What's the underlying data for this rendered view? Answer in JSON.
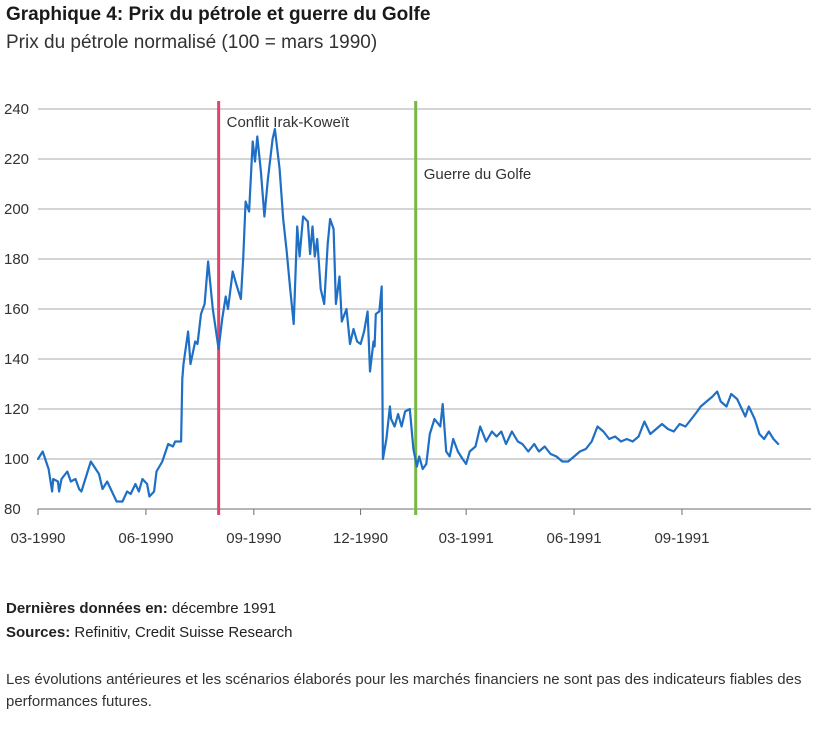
{
  "header": {
    "title": "Graphique 4: Prix du pétrole et guerre du Golfe",
    "subtitle": "Prix du pétrole normalisé (100 = mars 1990)"
  },
  "footer": {
    "last_data_label": "Dernières données en:",
    "last_data_value": "décembre 1991",
    "sources_label": "Sources:",
    "sources_value": "Refinitiv, Credit Suisse Research",
    "disclaimer": "Les évolutions antérieures et les scénarios élaborés pour les marchés financiers ne sont pas des indicateurs fiables des performances futures."
  },
  "chart_data": {
    "type": "line",
    "title": "Graphique 4: Prix du pétrole et guerre du Golfe",
    "subtitle": "Prix du pétrole normalisé (100 = mars 1990)",
    "xlabel": "",
    "ylabel": "",
    "x_range": [
      "1990-03-01",
      "1991-12-20"
    ],
    "ylim": [
      80,
      240
    ],
    "y_ticks": [
      80,
      100,
      120,
      140,
      160,
      180,
      200,
      220,
      240
    ],
    "x_ticks": [
      {
        "date": "1990-03-01",
        "label": "03-1990"
      },
      {
        "date": "1990-06-01",
        "label": "06-1990"
      },
      {
        "date": "1990-09-01",
        "label": "09-1990"
      },
      {
        "date": "1990-12-01",
        "label": "12-1990"
      },
      {
        "date": "1991-03-01",
        "label": "03-1991"
      },
      {
        "date": "1991-06-01",
        "label": "06-1991"
      },
      {
        "date": "1991-09-01",
        "label": "09-1991"
      }
    ],
    "grid": "horizontal",
    "line_color": "#1f6fc5",
    "events": [
      {
        "date": "1990-08-02",
        "label": "Conflit Irak-Koweït",
        "color": "#e0436c"
      },
      {
        "date": "1991-01-17",
        "label": "Guerre du Golfe",
        "color": "#76b843"
      }
    ],
    "series": [
      {
        "name": "",
        "points": [
          [
            "1990-03-01",
            100
          ],
          [
            "1990-03-05",
            103
          ],
          [
            "1990-03-10",
            96
          ],
          [
            "1990-03-13",
            87
          ],
          [
            "1990-03-14",
            92
          ],
          [
            "1990-03-18",
            91
          ],
          [
            "1990-03-19",
            87
          ],
          [
            "1990-03-21",
            92
          ],
          [
            "1990-03-26",
            95
          ],
          [
            "1990-03-29",
            91
          ],
          [
            "1990-04-02",
            92
          ],
          [
            "1990-04-05",
            88
          ],
          [
            "1990-04-07",
            87
          ],
          [
            "1990-04-11",
            93
          ],
          [
            "1990-04-15",
            99
          ],
          [
            "1990-04-22",
            94
          ],
          [
            "1990-04-25",
            88
          ],
          [
            "1990-04-29",
            91
          ],
          [
            "1990-05-02",
            88
          ],
          [
            "1990-05-07",
            83
          ],
          [
            "1990-05-12",
            83
          ],
          [
            "1990-05-16",
            87
          ],
          [
            "1990-05-19",
            86
          ],
          [
            "1990-05-23",
            90
          ],
          [
            "1990-05-26",
            87
          ],
          [
            "1990-05-29",
            92
          ],
          [
            "1990-06-02",
            90
          ],
          [
            "1990-06-04",
            85
          ],
          [
            "1990-06-08",
            87
          ],
          [
            "1990-06-10",
            95
          ],
          [
            "1990-06-15",
            99
          ],
          [
            "1990-06-20",
            106
          ],
          [
            "1990-06-24",
            105
          ],
          [
            "1990-06-26",
            107
          ],
          [
            "1990-07-01",
            107
          ],
          [
            "1990-07-02",
            132
          ],
          [
            "1990-07-03",
            138
          ],
          [
            "1990-07-07",
            151
          ],
          [
            "1990-07-09",
            138
          ],
          [
            "1990-07-13",
            147
          ],
          [
            "1990-07-15",
            146
          ],
          [
            "1990-07-18",
            158
          ],
          [
            "1990-07-21",
            162
          ],
          [
            "1990-07-24",
            179
          ],
          [
            "1990-07-28",
            160
          ],
          [
            "1990-08-02",
            144
          ],
          [
            "1990-08-05",
            156
          ],
          [
            "1990-08-08",
            165
          ],
          [
            "1990-08-10",
            160
          ],
          [
            "1990-08-14",
            175
          ],
          [
            "1990-08-17",
            170
          ],
          [
            "1990-08-21",
            164
          ],
          [
            "1990-08-23",
            181
          ],
          [
            "1990-08-25",
            203
          ],
          [
            "1990-08-28",
            199
          ],
          [
            "1990-08-31",
            227
          ],
          [
            "1990-09-02",
            219
          ],
          [
            "1990-09-04",
            229
          ],
          [
            "1990-09-07",
            215
          ],
          [
            "1990-09-10",
            197
          ],
          [
            "1990-09-13",
            212
          ],
          [
            "1990-09-17",
            228
          ],
          [
            "1990-09-19",
            232
          ],
          [
            "1990-09-23",
            216
          ],
          [
            "1990-09-26",
            196
          ],
          [
            "1990-09-29",
            183
          ],
          [
            "1990-10-02",
            168
          ],
          [
            "1990-10-05",
            154
          ],
          [
            "1990-10-08",
            193
          ],
          [
            "1990-10-10",
            181
          ],
          [
            "1990-10-13",
            197
          ],
          [
            "1990-10-17",
            195
          ],
          [
            "1990-10-19",
            182
          ],
          [
            "1990-10-21",
            193
          ],
          [
            "1990-10-23",
            181
          ],
          [
            "1990-10-25",
            188
          ],
          [
            "1990-10-28",
            168
          ],
          [
            "1990-10-31",
            162
          ],
          [
            "1990-11-03",
            186
          ],
          [
            "1990-11-05",
            196
          ],
          [
            "1990-11-08",
            192
          ],
          [
            "1990-11-10",
            162
          ],
          [
            "1990-11-13",
            173
          ],
          [
            "1990-11-15",
            155
          ],
          [
            "1990-11-19",
            160
          ],
          [
            "1990-11-22",
            146
          ],
          [
            "1990-11-25",
            152
          ],
          [
            "1990-11-28",
            147
          ],
          [
            "1990-12-01",
            146
          ],
          [
            "1990-12-04",
            151
          ],
          [
            "1990-12-07",
            159
          ],
          [
            "1990-12-09",
            135
          ],
          [
            "1990-12-12",
            147
          ],
          [
            "1990-12-13",
            145
          ],
          [
            "1990-12-14",
            158
          ],
          [
            "1990-12-17",
            159
          ],
          [
            "1990-12-19",
            169
          ],
          [
            "1990-12-20",
            100
          ],
          [
            "1990-12-23",
            108
          ],
          [
            "1990-12-26",
            121
          ],
          [
            "1990-12-27",
            116
          ],
          [
            "1990-12-30",
            113
          ],
          [
            "1991-01-02",
            118
          ],
          [
            "1991-01-05",
            113
          ],
          [
            "1991-01-08",
            119
          ],
          [
            "1991-01-12",
            120
          ],
          [
            "1991-01-15",
            104
          ],
          [
            "1991-01-18",
            97
          ],
          [
            "1991-01-20",
            101
          ],
          [
            "1991-01-23",
            96
          ],
          [
            "1991-01-26",
            98
          ],
          [
            "1991-01-29",
            110
          ],
          [
            "1991-02-02",
            116
          ],
          [
            "1991-02-07",
            113
          ],
          [
            "1991-02-09",
            122
          ],
          [
            "1991-02-12",
            103
          ],
          [
            "1991-02-15",
            101
          ],
          [
            "1991-02-18",
            108
          ],
          [
            "1991-02-22",
            103
          ],
          [
            "1991-02-26",
            100
          ],
          [
            "1991-03-01",
            98
          ],
          [
            "1991-03-04",
            103
          ],
          [
            "1991-03-09",
            105
          ],
          [
            "1991-03-13",
            113
          ],
          [
            "1991-03-18",
            107
          ],
          [
            "1991-03-23",
            111
          ],
          [
            "1991-03-27",
            109
          ],
          [
            "1991-03-31",
            111
          ],
          [
            "1991-04-04",
            106
          ],
          [
            "1991-04-09",
            111
          ],
          [
            "1991-04-14",
            107
          ],
          [
            "1991-04-18",
            106
          ],
          [
            "1991-04-23",
            103
          ],
          [
            "1991-04-28",
            106
          ],
          [
            "1991-05-02",
            103
          ],
          [
            "1991-05-07",
            105
          ],
          [
            "1991-05-12",
            102
          ],
          [
            "1991-05-17",
            101
          ],
          [
            "1991-05-22",
            99
          ],
          [
            "1991-05-27",
            99
          ],
          [
            "1991-06-01",
            101
          ],
          [
            "1991-06-06",
            103
          ],
          [
            "1991-06-11",
            104
          ],
          [
            "1991-06-16",
            107
          ],
          [
            "1991-06-21",
            113
          ],
          [
            "1991-06-26",
            111
          ],
          [
            "1991-07-01",
            108
          ],
          [
            "1991-07-06",
            109
          ],
          [
            "1991-07-11",
            107
          ],
          [
            "1991-07-16",
            108
          ],
          [
            "1991-07-21",
            107
          ],
          [
            "1991-07-26",
            109
          ],
          [
            "1991-07-31",
            115
          ],
          [
            "1991-08-05",
            110
          ],
          [
            "1991-08-10",
            112
          ],
          [
            "1991-08-15",
            114
          ],
          [
            "1991-08-20",
            112
          ],
          [
            "1991-08-25",
            111
          ],
          [
            "1991-08-30",
            114
          ],
          [
            "1991-09-04",
            113
          ],
          [
            "1991-09-09",
            116
          ],
          [
            "1991-09-14",
            119
          ],
          [
            "1991-09-17",
            121
          ],
          [
            "1991-09-22",
            123
          ],
          [
            "1991-09-27",
            125
          ],
          [
            "1991-10-01",
            127
          ],
          [
            "1991-10-04",
            123
          ],
          [
            "1991-10-09",
            121
          ],
          [
            "1991-10-13",
            126
          ],
          [
            "1991-10-18",
            124
          ],
          [
            "1991-10-22",
            120
          ],
          [
            "1991-10-25",
            117
          ],
          [
            "1991-10-28",
            121
          ],
          [
            "1991-11-02",
            116
          ],
          [
            "1991-11-06",
            110
          ],
          [
            "1991-11-10",
            108
          ],
          [
            "1991-11-14",
            111
          ],
          [
            "1991-11-18",
            108
          ],
          [
            "1991-11-22",
            106
          ]
        ]
      }
    ]
  }
}
